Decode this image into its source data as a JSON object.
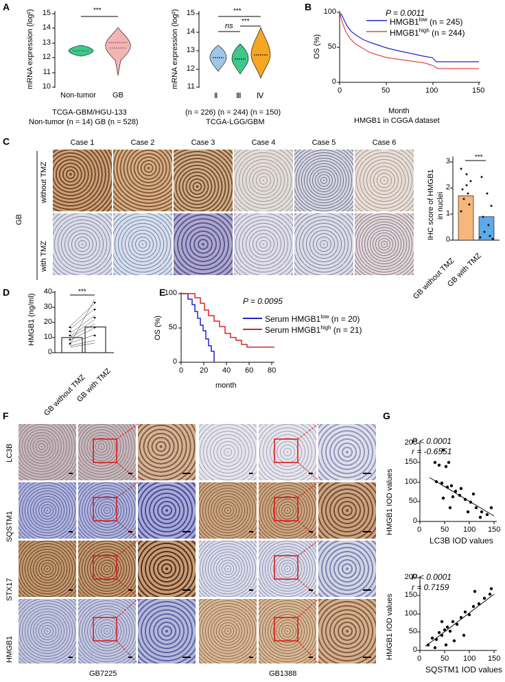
{
  "panels": {
    "A": "A",
    "B": "B",
    "C": "C",
    "D": "D",
    "E": "E",
    "F": "F",
    "G": "G"
  },
  "panel_a1": {
    "ylabel": "mRNA expression (log²)",
    "yticks": [
      "15",
      "14",
      "13",
      "12",
      "11",
      "10"
    ],
    "xticks": [
      "Non-tumor",
      "GB"
    ],
    "sig": "***",
    "caption1": "TCGA-GBM/HGU-133",
    "caption2": "Non-tumor (n = 14) GB (n = 528)",
    "colors": {
      "nontumor": "#3cc88a",
      "gb": "#f3b4b4"
    }
  },
  "panel_a2": {
    "ylabel": "mRNA expression (log²)",
    "yticks": [
      "15",
      "14",
      "13",
      "12",
      "11"
    ],
    "xticks": [
      "Ⅱ",
      "Ⅲ",
      "Ⅳ"
    ],
    "sig_ns": "ns",
    "sig1": "***",
    "sig2": "***",
    "caption1": "(n = 226) (n = 244) (n = 150)",
    "caption2": "TCGA-LGG/GBM",
    "colors": {
      "II": "#9fc6e4",
      "III": "#3cc88a",
      "IV": "#f5a623"
    }
  },
  "panel_b": {
    "pvalue": "P = 0.0011",
    "legend": [
      {
        "name": "HMGB1",
        "sup": "low",
        "n": "(n = 245)",
        "color": "#2020d0"
      },
      {
        "name": "HMGB1",
        "sup": "high",
        "n": "(n = 244)",
        "color": "#e04848"
      }
    ],
    "ylabel": "OS (%)",
    "yticks": [
      "100",
      "50",
      "0"
    ],
    "xticks": [
      "0",
      "50",
      "100",
      "150"
    ],
    "xlabel": "Month",
    "caption": "HMGB1 in CGGA dataset"
  },
  "panel_c": {
    "cases": [
      "Case 1",
      "Case 2",
      "Case 3",
      "Case 4",
      "Case 5",
      "Case 6"
    ],
    "row_labels": [
      "without TMZ",
      "with TMZ"
    ],
    "group_label": "GB",
    "bar_ylabel1": "IHC score of HMGB1",
    "bar_ylabel2": "in nuclei",
    "bar_yticks": [
      "3",
      "2",
      "1",
      "0"
    ],
    "bar_xticks": [
      "GB without TMZ",
      "GB with TMZ"
    ],
    "sig": "***",
    "bar_values": [
      1.7,
      0.9
    ],
    "bar_colors": [
      "#f7b77a",
      "#5da9e9"
    ]
  },
  "panel_d": {
    "ylabel": "HMGB1 (ng/ml)",
    "yticks": [
      "40",
      "30",
      "20",
      "10",
      "0"
    ],
    "xticks": [
      "GB without TMZ",
      "GB with TMZ"
    ],
    "sig": "***",
    "bar_values": [
      10,
      17
    ]
  },
  "panel_e": {
    "pvalue": "P = 0.0095",
    "legend": [
      {
        "name": "Serum HMGB1",
        "sup": "low",
        "n": "(n = 20)",
        "color": "#2020d0"
      },
      {
        "name": "Serum HMGB1",
        "sup": "high",
        "n": "(n = 21)",
        "color": "#e02020"
      }
    ],
    "ylabel": "OS (%)",
    "yticks": [
      "100",
      "50",
      "0"
    ],
    "xticks": [
      "0",
      "20",
      "40",
      "60",
      "80"
    ],
    "xlabel": "month"
  },
  "panel_f": {
    "rows": [
      "LC3B",
      "SQSTM1",
      "STX17",
      "HMGB1"
    ],
    "samples": [
      "GB7225",
      "GB1388"
    ]
  },
  "panel_g": {
    "plot1": {
      "p": "P < 0.0001",
      "r": "r = -0.6551",
      "ylabel": "HMGB1 IOD values",
      "xlabel": "LC3B IOD values",
      "yticks": [
        "200",
        "150",
        "100",
        "50",
        "0"
      ],
      "xticks": [
        "0",
        "50",
        "100",
        "150"
      ]
    },
    "plot2": {
      "p": "P < 0.0001",
      "r": "r = 0.7159",
      "ylabel": "HMGB1 IOD values",
      "xlabel": "SQSTM1 IOD values",
      "yticks": [
        "200",
        "150",
        "100",
        "50",
        "0"
      ],
      "xticks": [
        "0",
        "50",
        "100",
        "150"
      ]
    }
  }
}
